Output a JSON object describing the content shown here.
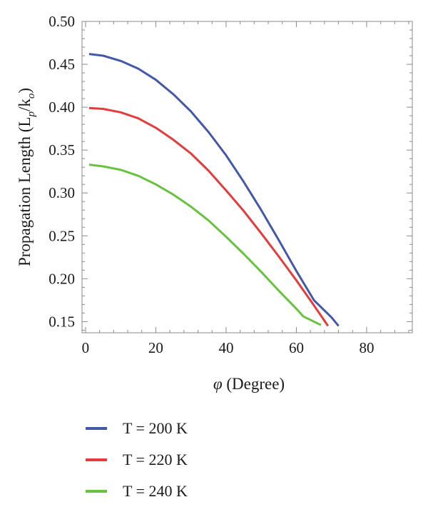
{
  "chart_data": {
    "type": "line",
    "xlabel_symbol": "φ",
    "xlabel_text": " (Degree)",
    "ylabel": "Propagation Length (L",
    "ylabel_sub1": "p",
    "ylabel_mid": "/k",
    "ylabel_sub2": "o",
    "ylabel_end": ")",
    "xlim": [
      -1,
      93
    ],
    "ylim": [
      0.137,
      0.5
    ],
    "x_ticks": [
      0,
      20,
      40,
      60,
      80
    ],
    "y_ticks": [
      0.15,
      0.2,
      0.25,
      0.3,
      0.35,
      0.4,
      0.45,
      0.5
    ],
    "y_tick_labels": [
      "0.15",
      "0.20",
      "0.25",
      "0.30",
      "0.35",
      "0.40",
      "0.45",
      "0.50"
    ],
    "x_minor_step": 4,
    "y_minor_step": 0.01,
    "grid": false,
    "legend_position": "bottom-left",
    "series": [
      {
        "name": "T = 200 K",
        "color": "#4458a8",
        "x": [
          1,
          5,
          10,
          15,
          20,
          25,
          30,
          35,
          40,
          45,
          50,
          55,
          60,
          65,
          70,
          72
        ],
        "y": [
          0.462,
          0.46,
          0.454,
          0.445,
          0.432,
          0.415,
          0.395,
          0.371,
          0.344,
          0.313,
          0.28,
          0.245,
          0.209,
          0.175,
          0.155,
          0.145
        ]
      },
      {
        "name": "T = 220 K",
        "color": "#e23c3c",
        "x": [
          1,
          5,
          10,
          15,
          20,
          25,
          30,
          35,
          40,
          45,
          50,
          55,
          60,
          65,
          69
        ],
        "y": [
          0.399,
          0.398,
          0.394,
          0.387,
          0.376,
          0.362,
          0.346,
          0.326,
          0.303,
          0.279,
          0.253,
          0.226,
          0.198,
          0.169,
          0.145
        ]
      },
      {
        "name": "T = 240 K",
        "color": "#67c23f",
        "x": [
          1,
          5,
          10,
          15,
          20,
          25,
          30,
          35,
          40,
          45,
          50,
          55,
          60,
          62,
          67
        ],
        "y": [
          0.333,
          0.331,
          0.327,
          0.32,
          0.31,
          0.298,
          0.284,
          0.268,
          0.249,
          0.229,
          0.208,
          0.186,
          0.165,
          0.156,
          0.146
        ]
      }
    ]
  }
}
